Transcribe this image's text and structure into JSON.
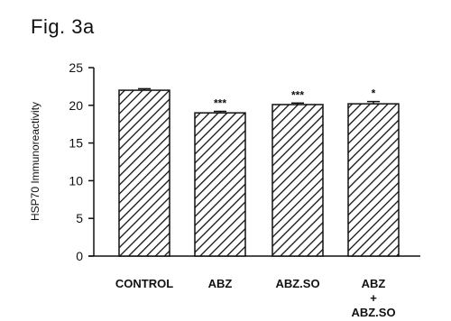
{
  "figure": {
    "label": "Fig. 3a"
  },
  "chart_data": {
    "type": "bar",
    "ylabel": "HSP70 Immunoreactivity",
    "xlabel": "",
    "ylim": [
      0,
      25
    ],
    "yticks": [
      0,
      5,
      10,
      15,
      20,
      25
    ],
    "ytick_labels": [
      "0",
      "5",
      "10",
      "15",
      "20",
      "25"
    ],
    "categories": [
      {
        "lines": [
          "CONTROL"
        ]
      },
      {
        "lines": [
          "ABZ"
        ]
      },
      {
        "lines": [
          "ABZ.SO"
        ]
      },
      {
        "lines": [
          "ABZ",
          "+",
          "ABZ.SO"
        ]
      }
    ],
    "values": [
      22.0,
      19.0,
      20.1,
      20.2
    ],
    "errors": [
      0.2,
      0.2,
      0.2,
      0.3
    ],
    "significance": [
      "",
      "***",
      "***",
      "*"
    ],
    "bar_fill": "hatched",
    "grid": false,
    "colors": {
      "ink": "#111111",
      "background": "#ffffff"
    }
  }
}
